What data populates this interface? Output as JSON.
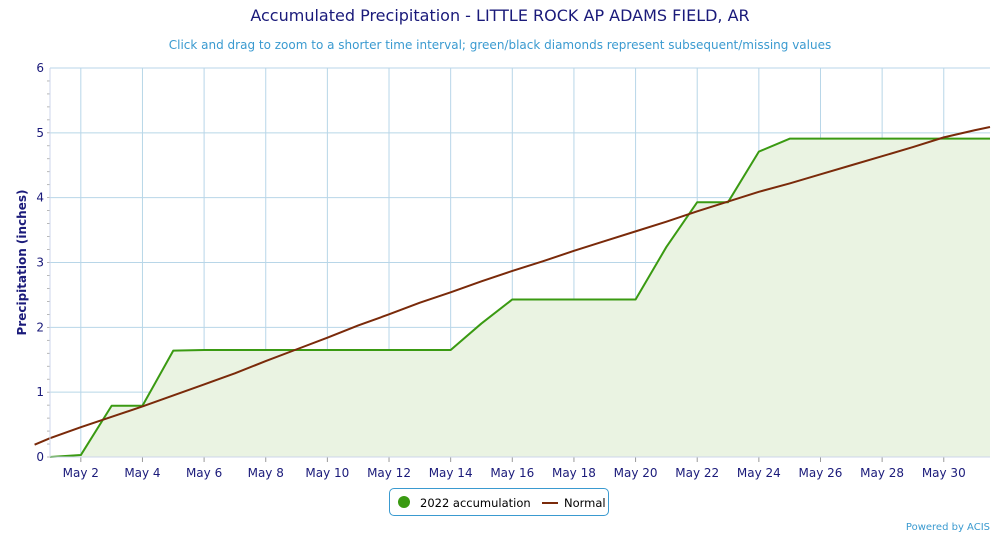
{
  "header": {
    "title": "Accumulated Precipitation - LITTLE ROCK AP ADAMS FIELD, AR",
    "subtitle": "Click and drag to zoom to a shorter time interval; green/black diamonds represent subsequent/missing values"
  },
  "footer": {
    "credit": "Powered by ACIS"
  },
  "colors": {
    "accumulation": "#3a9a12",
    "accumulation_fill": "#eaf3e2",
    "normal": "#7a2a0a",
    "grid": "#b8d6e8",
    "axis_text": "#1a1a7a",
    "accent": "#3a9ad0"
  },
  "chart_data": {
    "type": "area",
    "title": "Accumulated Precipitation - LITTLE ROCK AP ADAMS FIELD, AR",
    "xlabel": "",
    "ylabel": "Precipitation (inches)",
    "ylim": [
      0,
      6
    ],
    "yticks": [
      0,
      1,
      2,
      3,
      4,
      5,
      6
    ],
    "xlim": [
      1,
      31.5
    ],
    "xticks": [
      {
        "day": 2,
        "label": "May 2"
      },
      {
        "day": 4,
        "label": "May 4"
      },
      {
        "day": 6,
        "label": "May 6"
      },
      {
        "day": 8,
        "label": "May 8"
      },
      {
        "day": 10,
        "label": "May 10"
      },
      {
        "day": 12,
        "label": "May 12"
      },
      {
        "day": 14,
        "label": "May 14"
      },
      {
        "day": 16,
        "label": "May 16"
      },
      {
        "day": 18,
        "label": "May 18"
      },
      {
        "day": 20,
        "label": "May 20"
      },
      {
        "day": 22,
        "label": "May 22"
      },
      {
        "day": 24,
        "label": "May 24"
      },
      {
        "day": 26,
        "label": "May 26"
      },
      {
        "day": 28,
        "label": "May 28"
      },
      {
        "day": 30,
        "label": "May 30"
      }
    ],
    "grid": true,
    "legend_position": "bottom-center",
    "series": [
      {
        "name": "2022 accumulation",
        "kind": "area",
        "x": [
          1,
          2,
          3,
          4,
          5,
          6,
          7,
          8,
          9,
          10,
          11,
          12,
          13,
          14,
          15,
          16,
          17,
          18,
          19,
          20,
          21,
          22,
          23,
          24,
          25,
          26,
          27,
          28,
          29,
          30,
          31
        ],
        "y": [
          0.0,
          0.03,
          0.79,
          0.79,
          1.64,
          1.65,
          1.65,
          1.65,
          1.65,
          1.65,
          1.65,
          1.65,
          1.65,
          1.65,
          2.06,
          2.43,
          2.43,
          2.43,
          2.43,
          2.43,
          3.24,
          3.93,
          3.93,
          4.71,
          4.91,
          4.91,
          4.91,
          4.91,
          4.91,
          4.91,
          4.91
        ]
      },
      {
        "name": "Normal",
        "kind": "line",
        "x": [
          0.5,
          1,
          2,
          3,
          4,
          5,
          6,
          7,
          8,
          9,
          10,
          11,
          12,
          13,
          14,
          15,
          16,
          17,
          18,
          19,
          20,
          21,
          22,
          23,
          24,
          25,
          26,
          27,
          28,
          29,
          30,
          31,
          31.5
        ],
        "y": [
          0.19,
          0.29,
          0.46,
          0.62,
          0.78,
          0.95,
          1.12,
          1.29,
          1.48,
          1.66,
          1.84,
          2.03,
          2.2,
          2.38,
          2.54,
          2.71,
          2.87,
          3.02,
          3.18,
          3.33,
          3.48,
          3.63,
          3.79,
          3.94,
          4.09,
          4.22,
          4.36,
          4.5,
          4.64,
          4.78,
          4.93,
          5.04,
          5.09
        ]
      }
    ]
  }
}
